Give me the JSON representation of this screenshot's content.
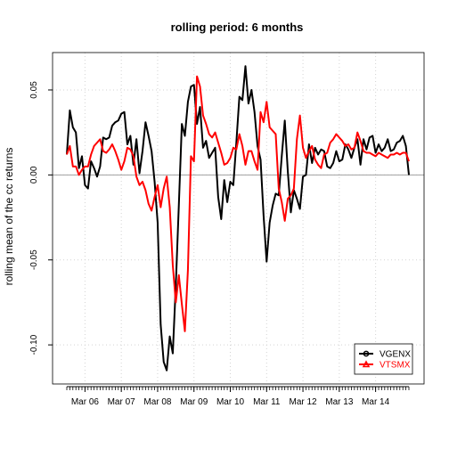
{
  "chart_data": {
    "type": "line",
    "title": "rolling period: 6 months",
    "xlabel": "",
    "ylabel": "rolling mean of the cc returns",
    "x_start": "Sep 2005",
    "x_months": 114,
    "x_tick_labels": [
      "Mar 06",
      "Mar 07",
      "Mar 08",
      "Mar 09",
      "Mar 10",
      "Mar 11",
      "Mar 12",
      "Mar 13",
      "Mar 14"
    ],
    "x_tick_months": [
      6,
      18,
      30,
      42,
      54,
      66,
      78,
      90,
      102
    ],
    "ylim": [
      -0.123,
      0.072
    ],
    "y_ticks": [
      -0.1,
      -0.05,
      0.0,
      0.05
    ],
    "y_tick_labels": [
      "-0.10",
      "-0.05",
      "0.00",
      "0.05"
    ],
    "zero_line": true,
    "grid": true,
    "legend_position": "bottom-right",
    "series": [
      {
        "name": "VGENX",
        "color": "#000000",
        "values": [
          0.012,
          0.038,
          0.028,
          0.025,
          0.004,
          0.011,
          -0.006,
          -0.008,
          0.008,
          0.004,
          -0.001,
          0.005,
          0.022,
          0.021,
          0.022,
          0.029,
          0.031,
          0.032,
          0.036,
          0.037,
          0.018,
          0.023,
          0.006,
          0.021,
          0.001,
          0.014,
          0.031,
          0.023,
          0.014,
          -0.004,
          -0.028,
          -0.088,
          -0.11,
          -0.115,
          -0.095,
          -0.105,
          -0.065,
          -0.018,
          0.03,
          0.023,
          0.043,
          0.052,
          0.053,
          0.03,
          0.04,
          0.016,
          0.02,
          0.01,
          0.013,
          0.016,
          -0.013,
          -0.026,
          -0.003,
          -0.016,
          -0.004,
          -0.006,
          0.019,
          0.046,
          0.044,
          0.064,
          0.042,
          0.05,
          0.037,
          0.017,
          0.009,
          -0.024,
          -0.051,
          -0.028,
          -0.018,
          -0.011,
          -0.012,
          0.011,
          0.032,
          0.002,
          -0.022,
          -0.009,
          -0.014,
          -0.02,
          -0.001,
          0.0,
          0.018,
          0.007,
          0.016,
          0.012,
          0.015,
          0.014,
          0.005,
          0.004,
          0.007,
          0.014,
          0.008,
          0.009,
          0.018,
          0.015,
          0.01,
          0.016,
          0.021,
          0.006,
          0.021,
          0.015,
          0.022,
          0.023,
          0.013,
          0.018,
          0.014,
          0.016,
          0.021,
          0.014,
          0.015,
          0.019,
          0.02,
          0.023,
          0.017,
          0.0
        ]
      },
      {
        "name": "VTSMX",
        "color": "#ff0000",
        "values": [
          0.012,
          0.017,
          0.005,
          0.005,
          0.0,
          0.003,
          0.005,
          0.005,
          0.012,
          0.017,
          0.019,
          0.021,
          0.014,
          0.013,
          0.015,
          0.018,
          0.014,
          0.009,
          0.003,
          0.008,
          0.016,
          0.015,
          0.011,
          -0.001,
          -0.006,
          -0.004,
          -0.009,
          -0.017,
          -0.021,
          -0.013,
          -0.006,
          -0.019,
          -0.008,
          -0.001,
          -0.019,
          -0.053,
          -0.075,
          -0.059,
          -0.076,
          -0.092,
          -0.056,
          0.011,
          0.008,
          0.058,
          0.052,
          0.035,
          0.03,
          0.024,
          0.022,
          0.025,
          0.019,
          0.013,
          0.006,
          0.007,
          0.01,
          0.016,
          0.015,
          0.024,
          0.017,
          0.006,
          0.014,
          0.014,
          0.008,
          0.003,
          0.037,
          0.031,
          0.043,
          0.028,
          0.026,
          0.024,
          -0.008,
          -0.016,
          -0.027,
          -0.014,
          -0.012,
          -0.008,
          0.021,
          0.035,
          0.016,
          0.01,
          0.014,
          0.017,
          0.009,
          0.006,
          0.004,
          0.012,
          0.013,
          0.019,
          0.021,
          0.024,
          0.022,
          0.02,
          0.017,
          0.018,
          0.015,
          0.016,
          0.025,
          0.02,
          0.014,
          0.013,
          0.013,
          0.012,
          0.011,
          0.013,
          0.012,
          0.011,
          0.01,
          0.012,
          0.012,
          0.013,
          0.012,
          0.013,
          0.013,
          0.008
        ]
      }
    ]
  }
}
